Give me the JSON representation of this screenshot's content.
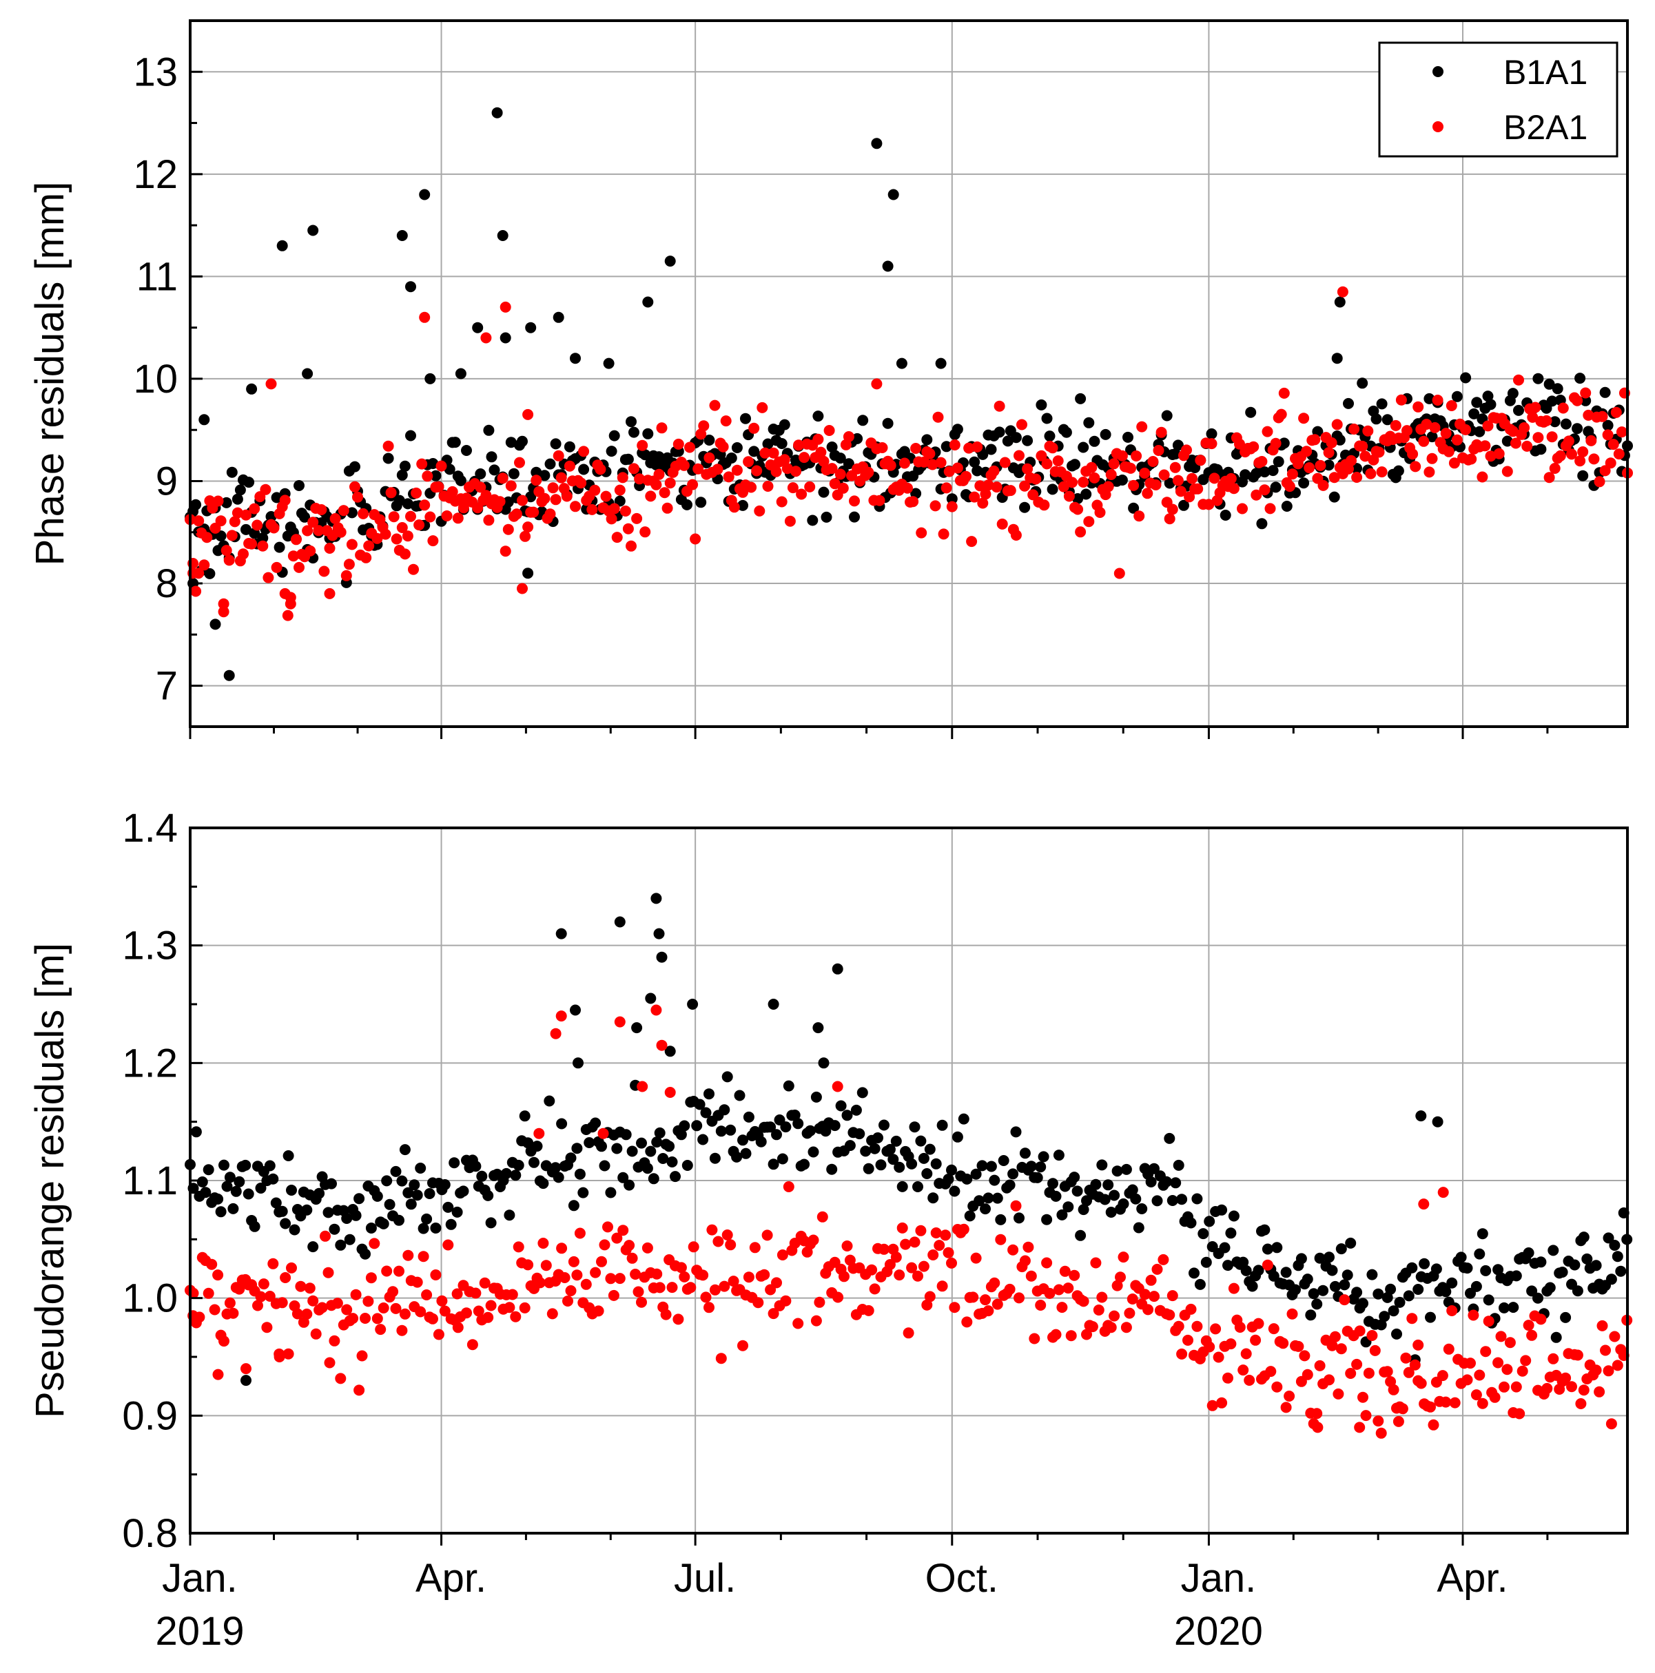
{
  "chart_data": [
    {
      "type": "scatter",
      "ylabel": "Phase residuals [mm]",
      "xlabel": "",
      "ylim": [
        6.6,
        13.5
      ],
      "y_ticks": [
        7,
        8,
        9,
        10,
        11,
        12,
        13
      ],
      "y_tick_labels": [
        "7",
        "8",
        "9",
        "10",
        "11",
        "12",
        "13"
      ],
      "xlim_days": [
        0,
        515
      ],
      "grid": true,
      "legend": {
        "position": "top-right",
        "entries": [
          "B1A1",
          "B2A1"
        ]
      },
      "series": [
        {
          "name": "B1A1",
          "color": "#000000",
          "trend": [
            [
              0,
              8.6
            ],
            [
              30,
              8.55
            ],
            [
              60,
              8.65
            ],
            [
              90,
              8.9
            ],
            [
              120,
              9.0
            ],
            [
              150,
              9.05
            ],
            [
              180,
              9.25
            ],
            [
              210,
              9.2
            ],
            [
              240,
              9.15
            ],
            [
              270,
              9.2
            ],
            [
              300,
              9.15
            ],
            [
              330,
              9.15
            ],
            [
              360,
              9.1
            ],
            [
              390,
              9.2
            ],
            [
              420,
              9.35
            ],
            [
              450,
              9.55
            ],
            [
              480,
              9.6
            ],
            [
              515,
              9.45
            ]
          ],
          "spread": 0.22,
          "outliers": [
            [
              1,
              8.0
            ],
            [
              5,
              9.6
            ],
            [
              9,
              7.6
            ],
            [
              14,
              7.1
            ],
            [
              22,
              9.9
            ],
            [
              33,
              11.3
            ],
            [
              42,
              10.05
            ],
            [
              44,
              11.45
            ],
            [
              76,
              11.4
            ],
            [
              79,
              10.9
            ],
            [
              84,
              11.8
            ],
            [
              86,
              10.0
            ],
            [
              97,
              10.05
            ],
            [
              103,
              10.5
            ],
            [
              110,
              12.6
            ],
            [
              112,
              11.4
            ],
            [
              113,
              10.4
            ],
            [
              121,
              8.1
            ],
            [
              122,
              10.5
            ],
            [
              132,
              10.6
            ],
            [
              138,
              10.2
            ],
            [
              150,
              10.15
            ],
            [
              164,
              10.75
            ],
            [
              172,
              11.15
            ],
            [
              246,
              12.3
            ],
            [
              250,
              11.1
            ],
            [
              252,
              11.8
            ],
            [
              255,
              10.15
            ],
            [
              269,
              10.15
            ],
            [
              411,
              10.2
            ],
            [
              412,
              10.75
            ]
          ]
        },
        {
          "name": "B2A1",
          "color": "#ff0000",
          "trend": [
            [
              0,
              8.45
            ],
            [
              30,
              8.45
            ],
            [
              60,
              8.55
            ],
            [
              90,
              8.7
            ],
            [
              120,
              8.8
            ],
            [
              150,
              8.95
            ],
            [
              180,
              9.1
            ],
            [
              210,
              9.1
            ],
            [
              240,
              9.05
            ],
            [
              270,
              9.1
            ],
            [
              300,
              9.05
            ],
            [
              330,
              9.05
            ],
            [
              360,
              9.0
            ],
            [
              390,
              9.15
            ],
            [
              420,
              9.25
            ],
            [
              450,
              9.4
            ],
            [
              480,
              9.45
            ],
            [
              515,
              9.35
            ]
          ],
          "spread": 0.22,
          "outliers": [
            [
              1,
              8.1
            ],
            [
              3,
              8.1
            ],
            [
              12,
              7.8
            ],
            [
              29,
              9.95
            ],
            [
              34,
              7.9
            ],
            [
              36,
              7.8
            ],
            [
              50,
              7.9
            ],
            [
              84,
              10.6
            ],
            [
              106,
              10.4
            ],
            [
              113,
              10.7
            ],
            [
              119,
              7.95
            ],
            [
              121,
              9.65
            ],
            [
              246,
              9.95
            ],
            [
              413,
              10.85
            ]
          ]
        }
      ]
    },
    {
      "type": "scatter",
      "ylabel": "Pseudorange residuals [m]",
      "xlabel": "",
      "ylim": [
        0.8,
        1.4
      ],
      "y_ticks": [
        0.8,
        0.9,
        1.0,
        1.1,
        1.2,
        1.3,
        1.4
      ],
      "y_tick_labels": [
        "0.8",
        "0.9",
        "1.0",
        "1.1",
        "1.2",
        "1.3",
        "1.4"
      ],
      "xlim_days": [
        0,
        515
      ],
      "x_ticks_days": [
        0,
        90,
        181,
        273,
        365,
        456
      ],
      "x_tick_labels": [
        "Jan.",
        "Apr.",
        "Jul.",
        "Oct.",
        "Jan.",
        "Apr."
      ],
      "year_labels": [
        {
          "day": 0,
          "label": "2019"
        },
        {
          "day": 365,
          "label": "2020"
        }
      ],
      "grid": true,
      "series": [
        {
          "name": "B1A1",
          "color": "#000000",
          "trend": [
            [
              0,
              1.1
            ],
            [
              30,
              1.09
            ],
            [
              60,
              1.075
            ],
            [
              90,
              1.09
            ],
            [
              120,
              1.11
            ],
            [
              150,
              1.13
            ],
            [
              180,
              1.135
            ],
            [
              210,
              1.145
            ],
            [
              240,
              1.14
            ],
            [
              265,
              1.115
            ],
            [
              290,
              1.1
            ],
            [
              320,
              1.085
            ],
            [
              350,
              1.095
            ],
            [
              365,
              1.04
            ],
            [
              400,
              1.02
            ],
            [
              430,
              0.99
            ],
            [
              460,
              1.02
            ],
            [
              490,
              1.015
            ],
            [
              515,
              1.03
            ]
          ],
          "spread": 0.018,
          "outliers": [
            [
              20,
              0.93
            ],
            [
              133,
              1.31
            ],
            [
              154,
              1.32
            ],
            [
              167,
              1.34
            ],
            [
              168,
              1.31
            ],
            [
              169,
              1.29
            ],
            [
              180,
              1.25
            ],
            [
              209,
              1.25
            ],
            [
              232,
              1.28
            ],
            [
              227,
              1.2
            ],
            [
              138,
              1.245
            ],
            [
              165,
              1.255
            ],
            [
              139,
              1.2
            ],
            [
              160,
              1.23
            ],
            [
              172,
              1.21
            ],
            [
              225,
              1.23
            ],
            [
              441,
              1.155
            ],
            [
              447,
              1.15
            ]
          ]
        },
        {
          "name": "B2A1",
          "color": "#ff0000",
          "trend": [
            [
              0,
              1.0
            ],
            [
              30,
              0.99
            ],
            [
              60,
              0.99
            ],
            [
              90,
              1.0
            ],
            [
              120,
              1.01
            ],
            [
              150,
              1.02
            ],
            [
              180,
              1.02
            ],
            [
              210,
              1.03
            ],
            [
              240,
              1.035
            ],
            [
              265,
              1.02
            ],
            [
              290,
              1.01
            ],
            [
              320,
              0.995
            ],
            [
              350,
              1.0
            ],
            [
              365,
              0.955
            ],
            [
              400,
              0.945
            ],
            [
              430,
              0.925
            ],
            [
              460,
              0.935
            ],
            [
              490,
              0.94
            ],
            [
              515,
              0.945
            ]
          ],
          "spread": 0.022,
          "outliers": [
            [
              20,
              0.94
            ],
            [
              133,
              1.24
            ],
            [
              154,
              1.235
            ],
            [
              167,
              1.245
            ],
            [
              169,
              1.215
            ],
            [
              172,
              1.175
            ],
            [
              232,
              1.18
            ],
            [
              131,
              1.225
            ],
            [
              162,
              1.18
            ],
            [
              125,
              1.14
            ],
            [
              148,
              1.14
            ],
            [
              449,
              1.09
            ],
            [
              442,
              1.08
            ],
            [
              1,
              0.985
            ],
            [
              10,
              0.935
            ],
            [
              32,
              0.95
            ],
            [
              50,
              0.945
            ],
            [
              96,
              0.975
            ],
            [
              440,
              0.96
            ],
            [
              404,
              0.89
            ],
            [
              419,
              0.89
            ],
            [
              433,
              0.895
            ]
          ]
        }
      ]
    }
  ]
}
